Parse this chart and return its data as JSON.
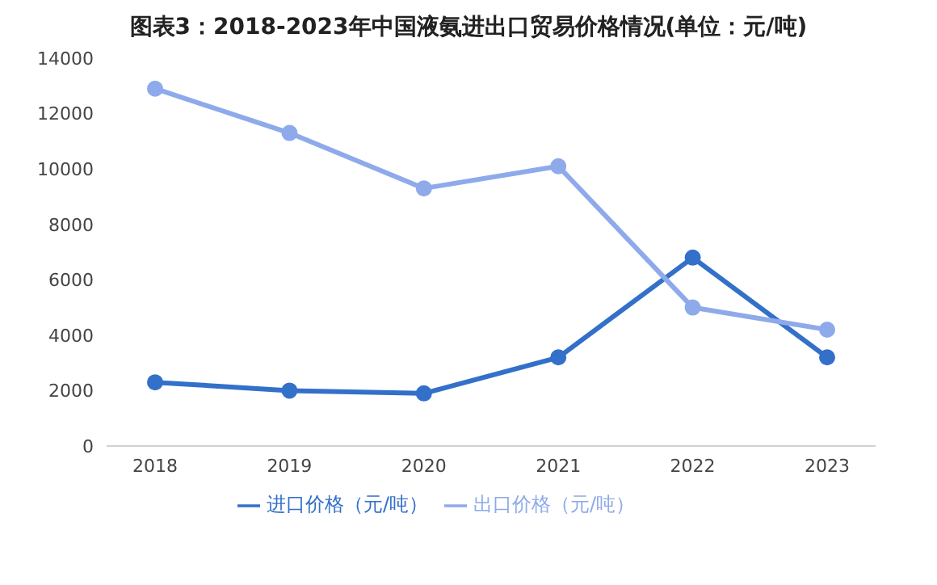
{
  "chart_data": {
    "type": "line",
    "title": "图表3：2018-2023年中国液氨进出口贸易价格情况(单位：元/吨)",
    "categories": [
      "2018",
      "2019",
      "2020",
      "2021",
      "2022",
      "2023"
    ],
    "series": [
      {
        "name": "进口价格（元/吨）",
        "color": "#3370c9",
        "values": [
          2300,
          2000,
          1900,
          3200,
          6800,
          3200
        ]
      },
      {
        "name": "出口价格（元/吨）",
        "color": "#8eaaea",
        "values": [
          12900,
          11300,
          9300,
          10100,
          5000,
          4200
        ]
      }
    ],
    "ylim": [
      0,
      14000
    ],
    "yticks": [
      0,
      2000,
      4000,
      6000,
      8000,
      10000,
      12000,
      14000
    ],
    "grid": false,
    "legend": "bottom",
    "marker": "circle",
    "line_style": "solid"
  }
}
